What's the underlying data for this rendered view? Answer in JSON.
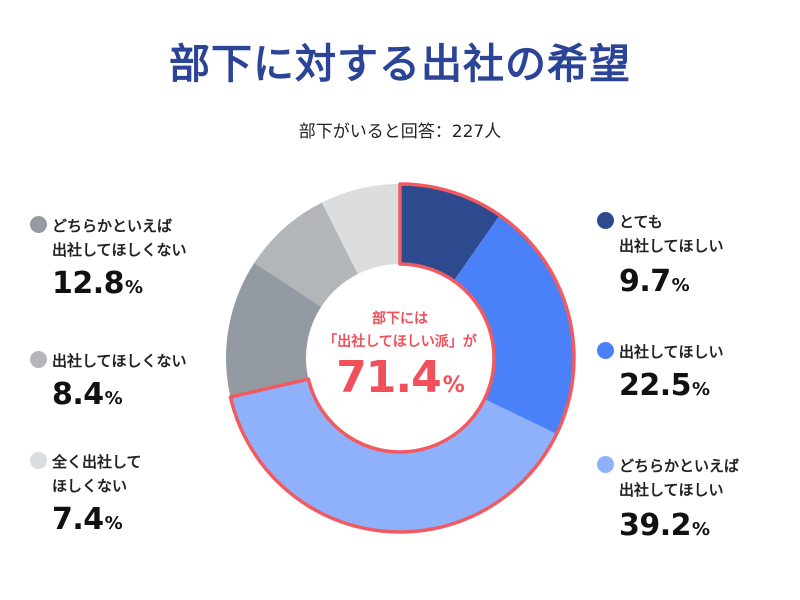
{
  "header": {
    "title": "部下に対する出社の希望",
    "subtitle": "部下がいると回答：227人"
  },
  "center": {
    "line1": "部下には",
    "line2": "「出社してほしい派」が",
    "value": "71.4",
    "unit": "%"
  },
  "legend": {
    "right": [
      {
        "line1": "とても",
        "line2": "出社してほしい",
        "value": "9.7",
        "unit": "%",
        "color": "#2e4a8f"
      },
      {
        "line1": "出社してほしい",
        "line2": "",
        "value": "22.5",
        "unit": "%",
        "color": "#4a80f8"
      },
      {
        "line1": "どちらかといえば",
        "line2": "出社してほしい",
        "value": "39.2",
        "unit": "%",
        "color": "#8fb0fa"
      }
    ],
    "left": [
      {
        "line1": "どちらかといえば",
        "line2": "出社してほしくない",
        "value": "12.8",
        "unit": "%",
        "color": "#949aa2"
      },
      {
        "line1": "出社してほしくない",
        "line2": "",
        "value": "8.4",
        "unit": "%",
        "color": "#b3b6b9"
      },
      {
        "line1": "全く出社して",
        "line2": "ほしくない",
        "value": "7.4",
        "unit": "%",
        "color": "#dcdddf"
      }
    ]
  },
  "colors": {
    "title": "#2b4496",
    "highlight_outline": "#f25a5f",
    "center_text": "#f0505a"
  },
  "chart_data": {
    "type": "pie",
    "variant": "donut",
    "title": "部下に対する出社の希望",
    "subtitle": "部下がいると回答：227人",
    "categories": [
      "とても出社してほしい",
      "出社してほしい",
      "どちらかといえば出社してほしい",
      "どちらかといえば出社してほしくない",
      "出社してほしくない",
      "全く出社してほしくない"
    ],
    "values": [
      9.7,
      22.5,
      39.2,
      12.8,
      8.4,
      7.4
    ],
    "unit": "%",
    "colors": [
      "#2e4a8f",
      "#4a80f8",
      "#8fb0fa",
      "#949aa2",
      "#b3b6b9",
      "#dcdddf"
    ],
    "start_angle": "12 o'clock",
    "direction": "clockwise",
    "highlight": {
      "segments": [
        0,
        1,
        2
      ],
      "total": 71.4,
      "label": "部下には「出社してほしい派」が71.4%"
    },
    "n": 227
  }
}
